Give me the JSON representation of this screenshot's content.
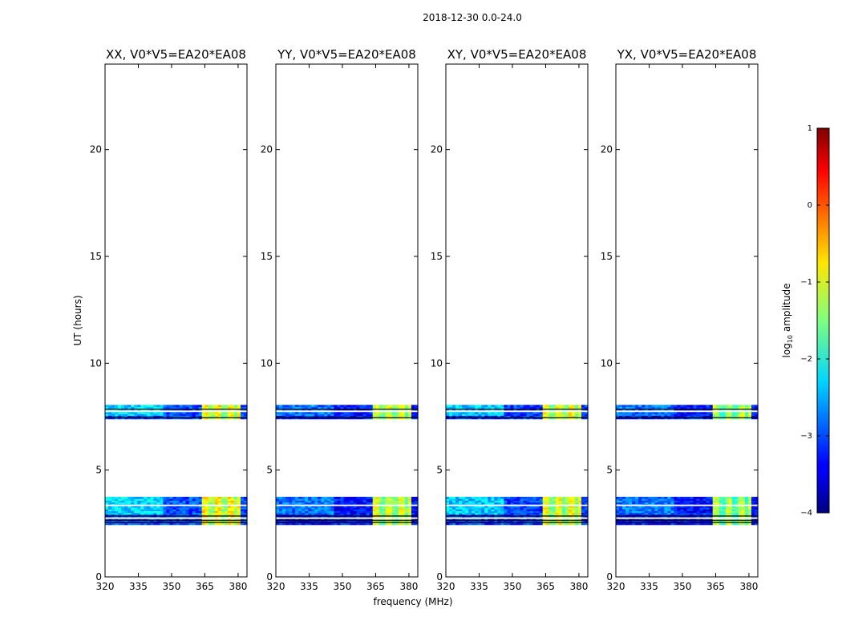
{
  "chart_data": {
    "type": "heatmap",
    "suptitle": "2018-12-30 0.0-24.0",
    "xlabel": "frequency (MHz)",
    "ylabel": "UT (hours)",
    "xlim": [
      320,
      384
    ],
    "ylim": [
      0,
      24
    ],
    "xticks": [
      320,
      335,
      350,
      365,
      380
    ],
    "yticks": [
      0,
      5,
      10,
      15,
      20
    ],
    "colorbar": {
      "label_prefix": "log",
      "label_sub": "10",
      "label_suffix": " amplitude",
      "range": [
        -4,
        1
      ],
      "ticks": [
        -4,
        -3,
        -2,
        -1,
        0,
        1
      ],
      "tick_labels": [
        "−4",
        "−3",
        "−2",
        "−1",
        "0",
        "1"
      ],
      "colormap": "jet"
    },
    "scans": [
      {
        "t_start": 2.45,
        "t_end": 3.75
      },
      {
        "t_start": 7.4,
        "t_end": 8.05
      }
    ],
    "flagged_lines_hours": [
      2.75,
      3.35,
      7.75
    ],
    "black_lines_hours": [
      2.55,
      2.65,
      2.85,
      7.45,
      7.85
    ],
    "bright_band_mhz": [
      363,
      380
    ],
    "panels": [
      {
        "name": "XX",
        "title": "XX, V0*V5=EA20*EA08",
        "low_level": -3.0,
        "mid_level": -2.3,
        "band_level": -0.8
      },
      {
        "name": "YY",
        "title": "YY, V0*V5=EA20*EA08",
        "low_level": -3.3,
        "mid_level": -2.8,
        "band_level": -1.0
      },
      {
        "name": "XY",
        "title": "XY, V0*V5=EA20*EA08",
        "low_level": -3.1,
        "mid_level": -2.4,
        "band_level": -0.9
      },
      {
        "name": "YX",
        "title": "YX, V0*V5=EA20*EA08",
        "low_level": -3.3,
        "mid_level": -2.8,
        "band_level": -1.2
      }
    ]
  }
}
